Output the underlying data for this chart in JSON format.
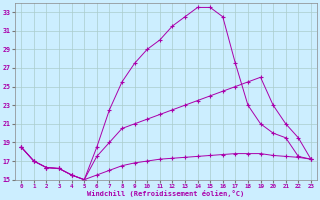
{
  "xlabel": "Windchill (Refroidissement éolien,°C)",
  "background_color": "#cceeff",
  "grid_color": "#aacccc",
  "line_color": "#aa00aa",
  "xlim": [
    -0.5,
    23.5
  ],
  "ylim": [
    15,
    34
  ],
  "xticks": [
    0,
    1,
    2,
    3,
    4,
    5,
    6,
    7,
    8,
    9,
    10,
    11,
    12,
    13,
    14,
    15,
    16,
    17,
    18,
    19,
    20,
    21,
    22,
    23
  ],
  "yticks": [
    15,
    17,
    19,
    21,
    23,
    25,
    27,
    29,
    31,
    33
  ],
  "line1_x": [
    0,
    1,
    2,
    3,
    4,
    5,
    6,
    7,
    8,
    9,
    10,
    11,
    12,
    13,
    14,
    15,
    16,
    17,
    18,
    19,
    20,
    21,
    22,
    23
  ],
  "line1_y": [
    18.5,
    17.0,
    16.3,
    16.2,
    15.5,
    15.0,
    18.5,
    22.5,
    25.5,
    27.5,
    29.0,
    30.0,
    31.5,
    32.5,
    33.5,
    33.5,
    32.5,
    27.5,
    23.0,
    21.0,
    20.0,
    19.5,
    17.5,
    17.2
  ],
  "line2_x": [
    0,
    1,
    2,
    3,
    4,
    5,
    6,
    7,
    8,
    9,
    10,
    11,
    12,
    13,
    14,
    15,
    16,
    17,
    18,
    19,
    20,
    21,
    22,
    23
  ],
  "line2_y": [
    18.5,
    17.0,
    16.3,
    16.2,
    15.5,
    15.0,
    17.5,
    19.0,
    20.5,
    21.0,
    21.5,
    22.0,
    22.5,
    23.0,
    23.5,
    24.0,
    24.5,
    25.0,
    25.5,
    26.0,
    23.0,
    21.0,
    19.5,
    17.2
  ],
  "line3_x": [
    0,
    1,
    2,
    3,
    4,
    5,
    6,
    7,
    8,
    9,
    10,
    11,
    12,
    13,
    14,
    15,
    16,
    17,
    18,
    19,
    20,
    21,
    22,
    23
  ],
  "line3_y": [
    18.5,
    17.0,
    16.3,
    16.2,
    15.5,
    15.0,
    15.5,
    16.0,
    16.5,
    16.8,
    17.0,
    17.2,
    17.3,
    17.4,
    17.5,
    17.6,
    17.7,
    17.8,
    17.8,
    17.8,
    17.6,
    17.5,
    17.4,
    17.2
  ]
}
